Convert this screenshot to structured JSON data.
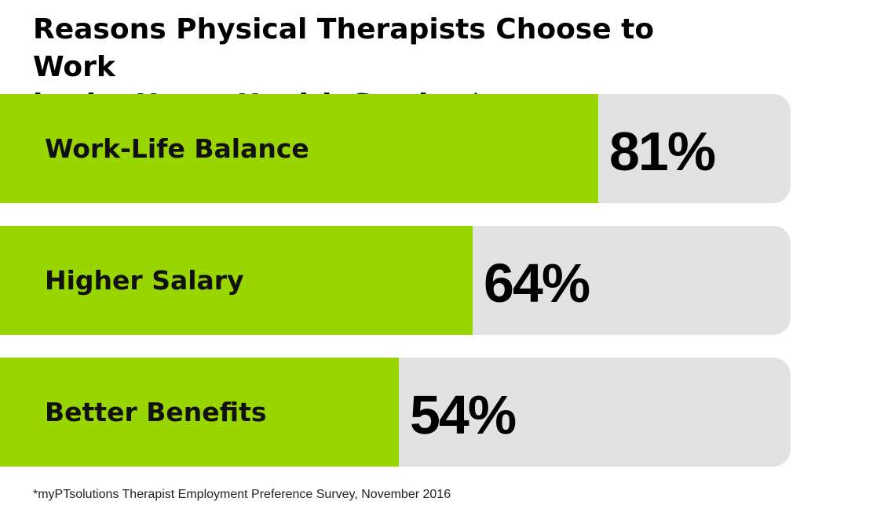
{
  "title_lines": [
    "Reasons Physical Therapists Choose to Work",
    "in the Home Health Setting*"
  ],
  "footnote": "*myPTsolutions Therapist Employment Preference Survey, November 2016",
  "colors": {
    "fill": "#99d600",
    "track": "#e2e2e2",
    "text": "#000000"
  },
  "chart_data": {
    "type": "bar",
    "orientation": "horizontal",
    "title": "Reasons Physical Therapists Choose to Work in the Home Health Setting*",
    "categories": [
      "Work-Life Balance",
      "Higher Salary",
      "Better Benefits"
    ],
    "values": [
      81,
      64,
      54
    ],
    "value_labels": [
      "81%",
      "64%",
      "54%"
    ],
    "xlim": [
      0,
      107
    ],
    "grid": false,
    "legend": "none"
  }
}
